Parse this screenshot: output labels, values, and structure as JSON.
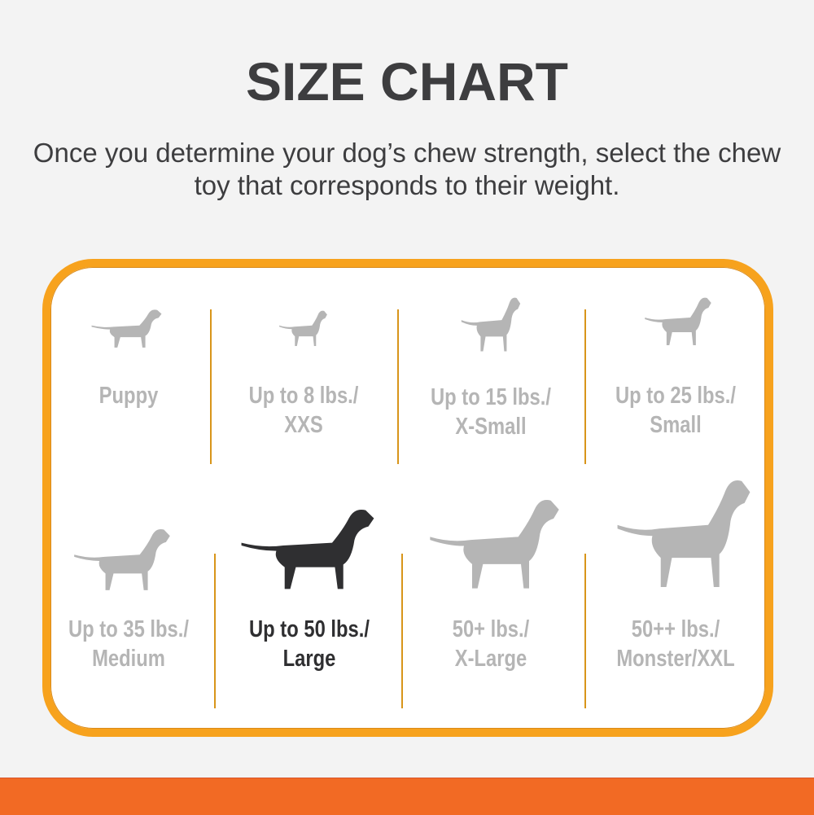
{
  "title": "SIZE CHART",
  "subtitle": "Once you determine your dog’s chew strength, select the chew toy that corresponds to their weight.",
  "colors": {
    "border": "#f7a21d",
    "bottom_bar": "#f26a24",
    "inactive": "#b5b5b5",
    "selected": "#2f2f31"
  },
  "sizes": [
    {
      "line1": "Puppy",
      "line2": "",
      "icon": "puppy-icon",
      "selected": false
    },
    {
      "line1": "Up to 8 lbs./",
      "line2": "XXS",
      "icon": "chihuahua-icon",
      "selected": false
    },
    {
      "line1": "Up to 15 lbs./",
      "line2": "X-Small",
      "icon": "pinscher-icon",
      "selected": false
    },
    {
      "line1": "Up to 25 lbs./",
      "line2": "Small",
      "icon": "terrier-icon",
      "selected": false
    },
    {
      "line1": "Up to 35 lbs./",
      "line2": "Medium",
      "icon": "beagle-icon",
      "selected": false
    },
    {
      "line1": "Up to 50 lbs./",
      "line2": "Large",
      "icon": "labrador-icon",
      "selected": true
    },
    {
      "line1": "50+ lbs./",
      "line2": "X-Large",
      "icon": "shepherd-icon",
      "selected": false
    },
    {
      "line1": "50++ lbs./",
      "line2": "Monster/XXL",
      "icon": "great-dane-icon",
      "selected": false
    }
  ]
}
